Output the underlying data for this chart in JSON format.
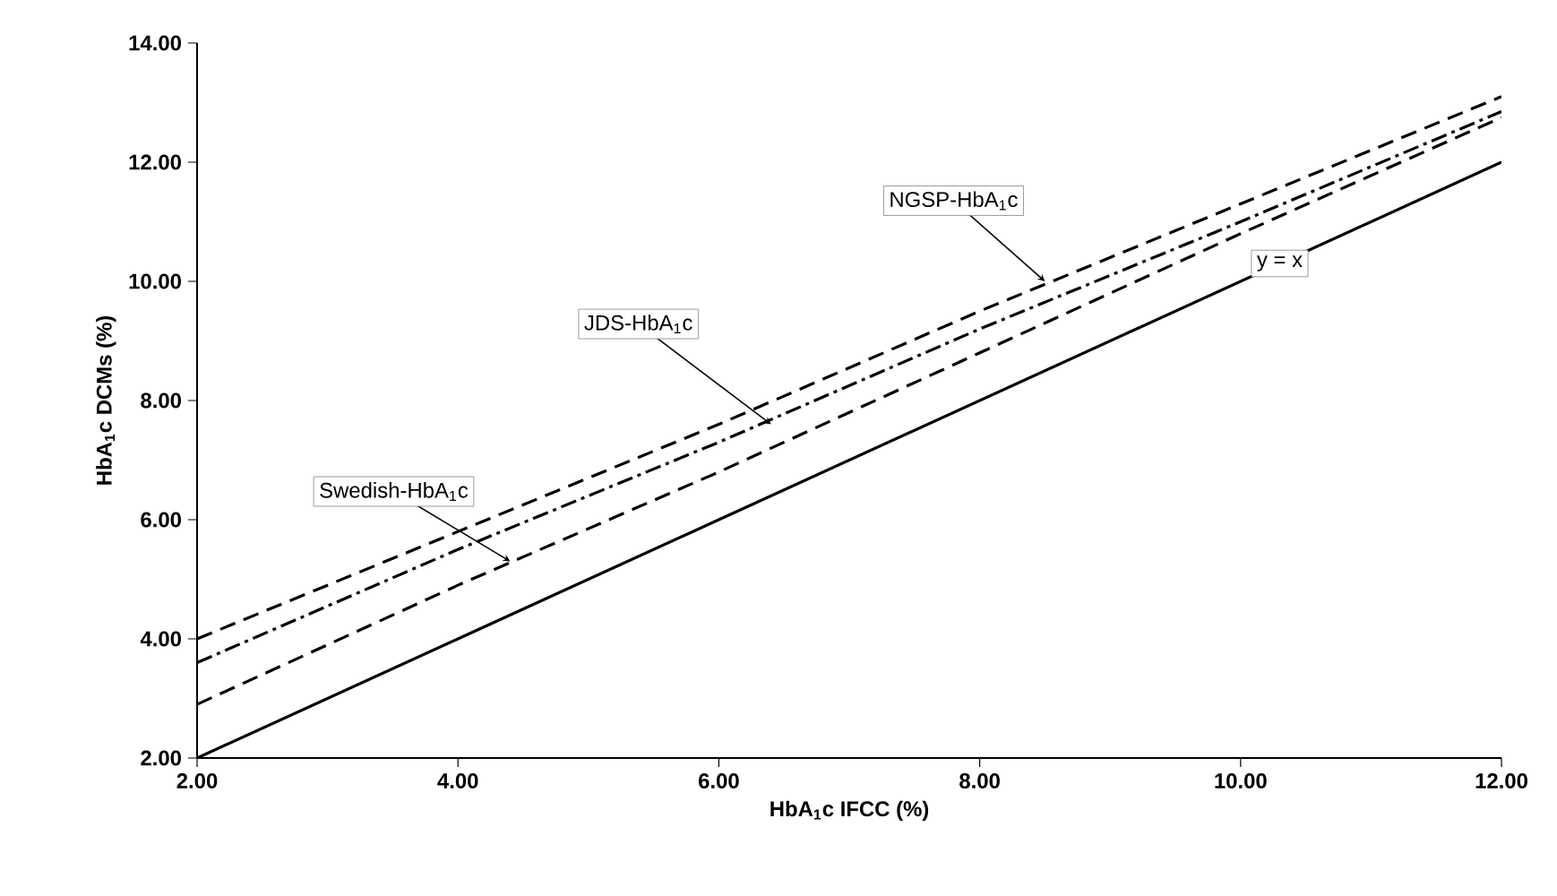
{
  "chart_data": {
    "type": "line",
    "xlabel": "HbA$_{1}$c IFCC (%)",
    "ylabel": "HbA$_{1}$c DCMs (%)",
    "xlim": [
      2,
      12
    ],
    "ylim": [
      2,
      14
    ],
    "xticks": [
      {
        "value": 2,
        "label": "2.00"
      },
      {
        "value": 4,
        "label": "4.00"
      },
      {
        "value": 6,
        "label": "6.00"
      },
      {
        "value": 8,
        "label": "8.00"
      },
      {
        "value": 10,
        "label": "10.00"
      },
      {
        "value": 12,
        "label": "12.00"
      }
    ],
    "yticks": [
      {
        "value": 2,
        "label": "2.00"
      },
      {
        "value": 4,
        "label": "4.00"
      },
      {
        "value": 6,
        "label": "6.00"
      },
      {
        "value": 8,
        "label": "8.00"
      },
      {
        "value": 10,
        "label": "10.00"
      },
      {
        "value": 12,
        "label": "12.00"
      },
      {
        "value": 14,
        "label": "14.00"
      }
    ],
    "grid": false,
    "marker": "none",
    "series": [
      {
        "color": "#000000",
        "line_style": "dashed",
        "x": [
          2,
          4,
          6,
          8,
          10,
          12
        ],
        "values": [
          4.0,
          5.8,
          7.6,
          9.5,
          11.3,
          13.1
        ]
      },
      {
        "color": "#000000",
        "line_style": "dashdot",
        "x": [
          2,
          4,
          6,
          8,
          10,
          12
        ],
        "values": [
          3.6,
          5.5,
          7.3,
          9.2,
          11.0,
          12.85
        ]
      },
      {
        "color": "#000000",
        "line_style": "dashed",
        "x": [
          2,
          4,
          6,
          8,
          10,
          12
        ],
        "values": [
          2.9,
          4.9,
          6.8,
          8.8,
          10.8,
          12.75
        ]
      },
      {
        "color": "#000000",
        "line_style": "solid",
        "x": [
          2,
          4,
          6,
          8,
          10,
          12
        ],
        "values": [
          2,
          4,
          6,
          8,
          10,
          12
        ]
      }
    ],
    "annotations": [
      {
        "text": "NGSP-HbA$_{1}$c",
        "x": 8.5,
        "y": 10.0
      },
      {
        "text": "JDS-HbA$_{1}$c",
        "x": 6.4,
        "y": 7.6
      },
      {
        "text": "Swedish-HbA$_{1}$c",
        "x": 4.4,
        "y": 5.3
      },
      {
        "text": "y = x",
        "x": 10.3,
        "y": 10.3
      }
    ]
  }
}
